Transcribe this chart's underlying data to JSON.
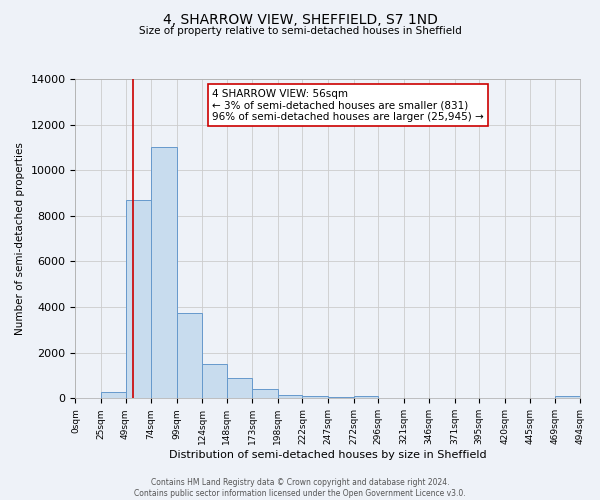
{
  "title": "4, SHARROW VIEW, SHEFFIELD, S7 1ND",
  "subtitle": "Size of property relative to semi-detached houses in Sheffield",
  "xlabel": "Distribution of semi-detached houses by size in Sheffield",
  "ylabel": "Number of semi-detached properties",
  "bin_edges": [
    0,
    25,
    49,
    74,
    99,
    124,
    148,
    173,
    198,
    222,
    247,
    272,
    296,
    321,
    346,
    371,
    395,
    420,
    445,
    469,
    494
  ],
  "bar_heights": [
    0,
    300,
    8700,
    11000,
    3750,
    1500,
    900,
    400,
    150,
    100,
    50,
    100,
    0,
    0,
    0,
    0,
    0,
    0,
    0,
    100
  ],
  "bar_color": "#c8dcee",
  "bar_edgecolor": "#6699cc",
  "vline_x": 56,
  "vline_color": "#cc0000",
  "annotation_title": "4 SHARROW VIEW: 56sqm",
  "annotation_line1": "← 3% of semi-detached houses are smaller (831)",
  "annotation_line2": "96% of semi-detached houses are larger (25,945) →",
  "annotation_box_edgecolor": "#cc0000",
  "ylim": [
    0,
    14000
  ],
  "yticks": [
    0,
    2000,
    4000,
    6000,
    8000,
    10000,
    12000,
    14000
  ],
  "tick_labels": [
    "0sqm",
    "25sqm",
    "49sqm",
    "74sqm",
    "99sqm",
    "124sqm",
    "148sqm",
    "173sqm",
    "198sqm",
    "222sqm",
    "247sqm",
    "272sqm",
    "296sqm",
    "321sqm",
    "346sqm",
    "371sqm",
    "395sqm",
    "420sqm",
    "445sqm",
    "469sqm",
    "494sqm"
  ],
  "footer_line1": "Contains HM Land Registry data © Crown copyright and database right 2024.",
  "footer_line2": "Contains public sector information licensed under the Open Government Licence v3.0.",
  "background_color": "#eef2f8",
  "plot_background": "#eef2f8",
  "grid_color": "#cccccc"
}
